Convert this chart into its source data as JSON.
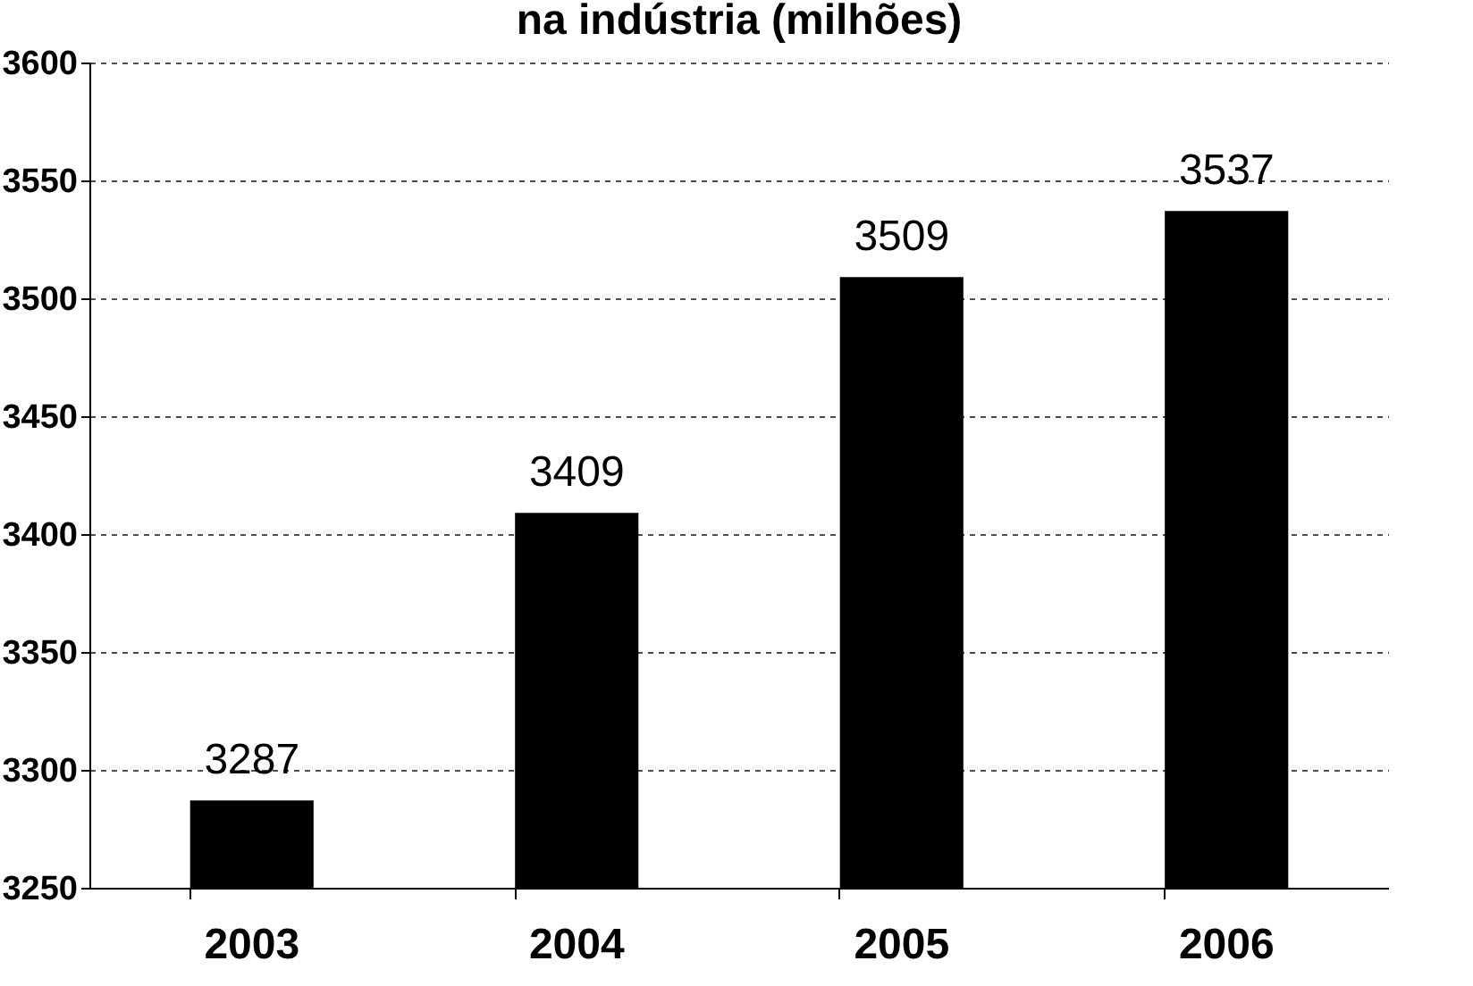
{
  "chart_data": {
    "type": "bar",
    "title": "na indústria (milhões)",
    "categories": [
      "2003",
      "2004",
      "2005",
      "2006"
    ],
    "values": [
      3287,
      3409,
      3509,
      3537
    ],
    "color": "#000000",
    "ylim": [
      3250,
      3600
    ],
    "yticks": [
      3250,
      3300,
      3350,
      3400,
      3450,
      3500,
      3550,
      3600
    ],
    "grid": "y",
    "data_labels": true
  }
}
